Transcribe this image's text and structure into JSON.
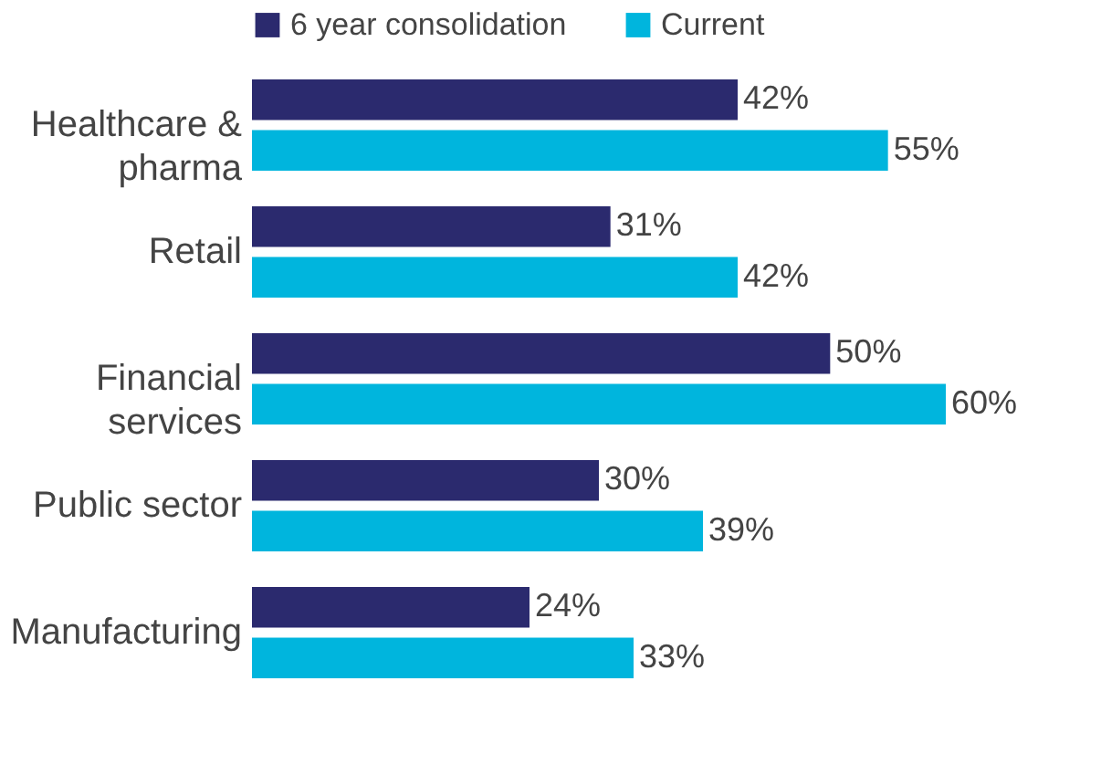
{
  "chart_data": {
    "type": "bar",
    "orientation": "horizontal",
    "categories": [
      "Healthcare & pharma",
      "Retail",
      "Financial services",
      "Public sector",
      "Manufacturing"
    ],
    "series": [
      {
        "name": "6 year consolidation",
        "color": "#2b2a6e",
        "values": [
          42,
          31,
          50,
          30,
          24
        ],
        "value_labels": [
          "42%",
          "31%",
          "50%",
          "30%",
          "24%"
        ]
      },
      {
        "name": "Current",
        "color": "#00b5dd",
        "values": [
          55,
          42,
          60,
          39,
          33
        ],
        "value_labels": [
          "55%",
          "42%",
          "60%",
          "39%",
          "33%"
        ]
      }
    ],
    "legend": "top",
    "grid": false,
    "tick_labels": "y"
  }
}
